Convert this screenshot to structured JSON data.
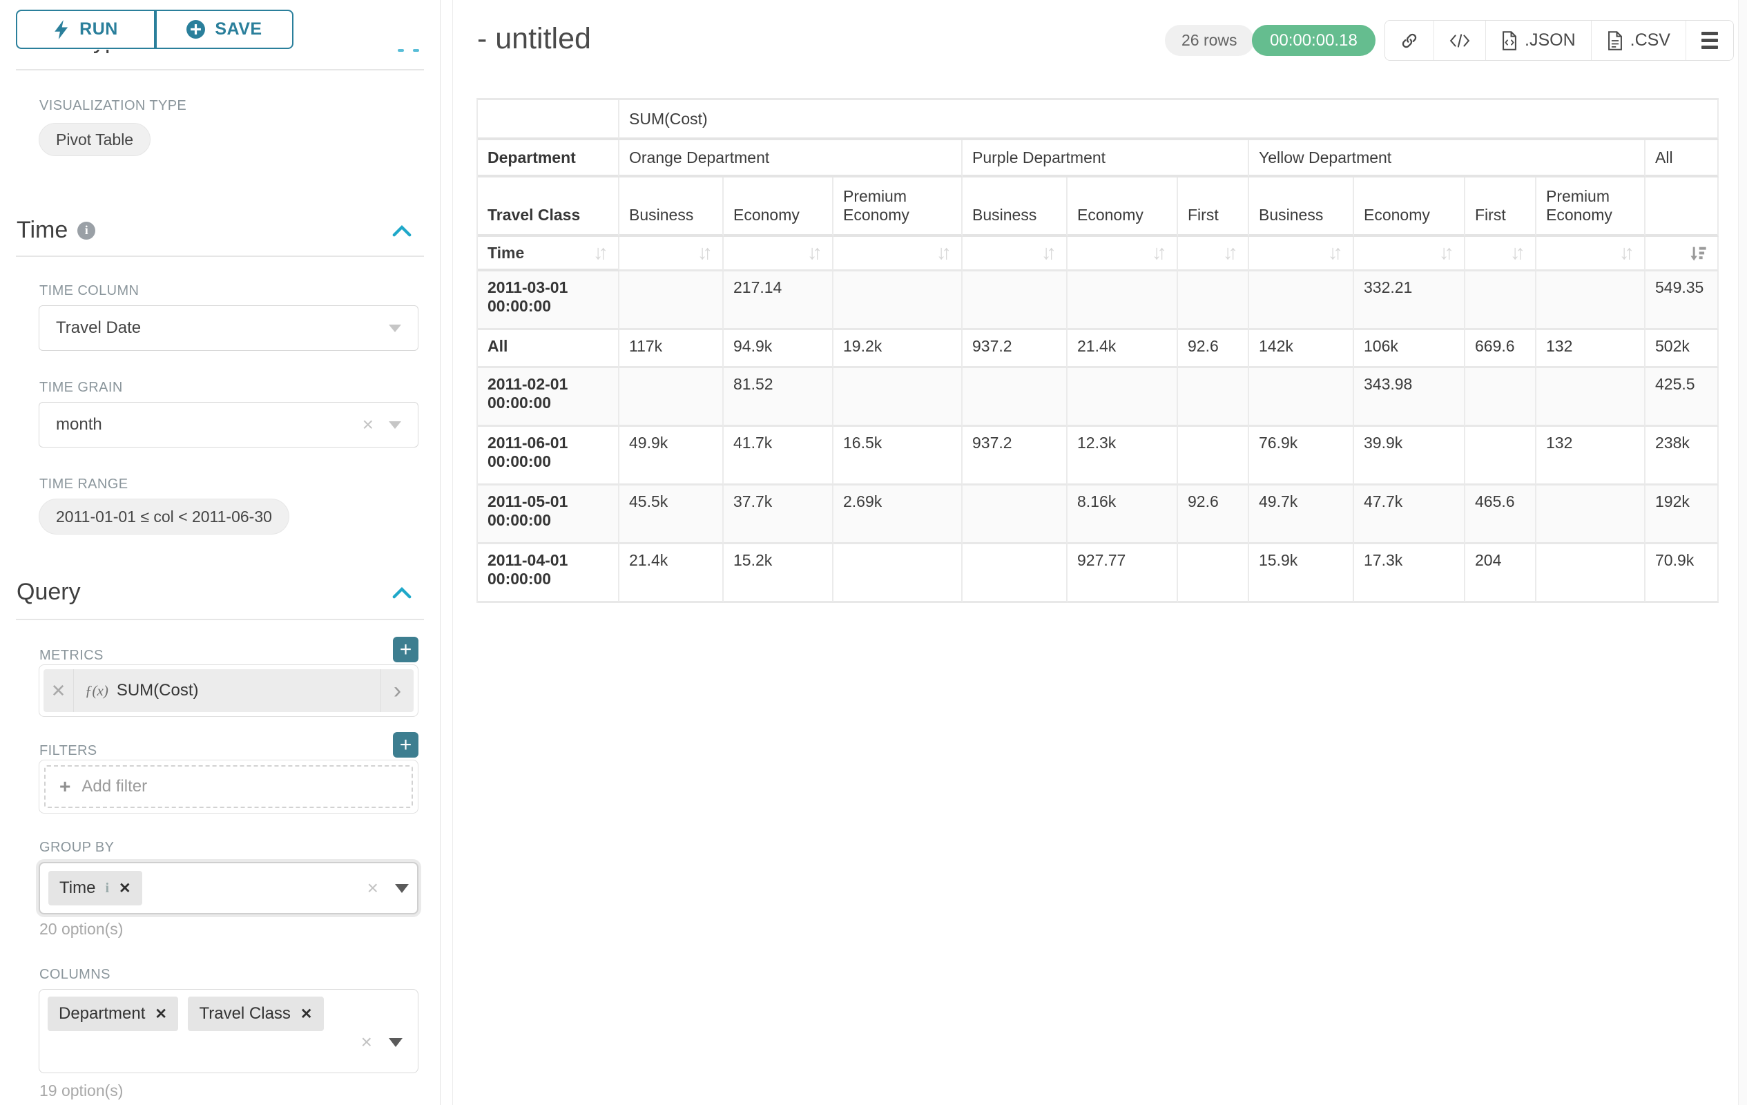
{
  "colors": {
    "accent": "#20a7c9",
    "accent_dark": "#2a7f9b",
    "green": "#65bd8f"
  },
  "sidebar": {
    "run_label": "RUN",
    "save_label": "SAVE",
    "chart_type_heading": "Chart Type",
    "visualization": {
      "label": "VISUALIZATION TYPE",
      "value": "Pivot Table"
    },
    "time": {
      "title": "Time",
      "column_label": "TIME COLUMN",
      "column_value": "Travel Date",
      "grain_label": "TIME GRAIN",
      "grain_value": "month",
      "range_label": "TIME RANGE",
      "range_value": "2011-01-01 ≤ col < 2011-06-30"
    },
    "query": {
      "title": "Query",
      "metrics_label": "METRICS",
      "metric_fn": "ƒ(x)",
      "metric_name": "SUM(Cost)",
      "filters_label": "FILTERS",
      "add_filter_label": "Add filter",
      "group_by_label": "GROUP BY",
      "group_by_chips": [
        "Time"
      ],
      "group_by_hint": "20 option(s)",
      "columns_label": "COLUMNS",
      "columns_chips": [
        "Department",
        "Travel Class"
      ],
      "columns_hint": "19 option(s)"
    }
  },
  "header": {
    "title": "- untitled",
    "row_count": "26 rows",
    "timer": "00:00:00.18",
    "json_label": ".JSON",
    "csv_label": ".CSV"
  },
  "pivot": {
    "metric_header": "SUM(Cost)",
    "row_dim_label": "Department",
    "row_dim2_label": "Travel Class",
    "time_label": "Time",
    "col_groups": [
      {
        "label": "Orange Department",
        "cols": [
          "Business",
          "Economy",
          "Premium Economy"
        ]
      },
      {
        "label": "Purple Department",
        "cols": [
          "Business",
          "Economy",
          "First"
        ]
      },
      {
        "label": "Yellow Department",
        "cols": [
          "Business",
          "Economy",
          "First",
          "Premium Economy"
        ]
      },
      {
        "label": "All",
        "cols": [
          ""
        ]
      }
    ],
    "rows": [
      {
        "label": "2011-03-01 00:00:00",
        "values": [
          "",
          "217.14",
          "",
          "",
          "",
          "",
          "",
          "332.21",
          "",
          "",
          "549.35"
        ]
      },
      {
        "label": "All",
        "values": [
          "117k",
          "94.9k",
          "19.2k",
          "937.2",
          "21.4k",
          "92.6",
          "142k",
          "106k",
          "669.6",
          "132",
          "502k"
        ]
      },
      {
        "label": "2011-02-01 00:00:00",
        "values": [
          "",
          "81.52",
          "",
          "",
          "",
          "",
          "",
          "343.98",
          "",
          "",
          "425.5"
        ]
      },
      {
        "label": "2011-06-01 00:00:00",
        "values": [
          "49.9k",
          "41.7k",
          "16.5k",
          "937.2",
          "12.3k",
          "",
          "76.9k",
          "39.9k",
          "",
          "132",
          "238k"
        ]
      },
      {
        "label": "2011-05-01 00:00:00",
        "values": [
          "45.5k",
          "37.7k",
          "2.69k",
          "",
          "8.16k",
          "92.6",
          "49.7k",
          "47.7k",
          "465.6",
          "",
          "192k"
        ]
      },
      {
        "label": "2011-04-01 00:00:00",
        "values": [
          "21.4k",
          "15.2k",
          "",
          "",
          "927.77",
          "",
          "15.9k",
          "17.3k",
          "204",
          "",
          "70.9k"
        ]
      }
    ]
  }
}
